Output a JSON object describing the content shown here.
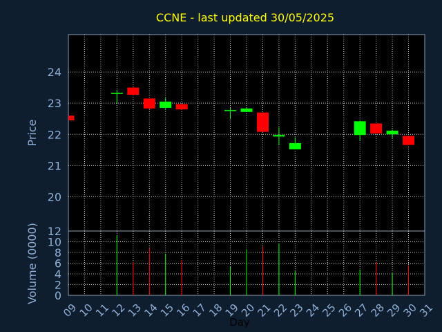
{
  "chart_data": {
    "type": "candlestick",
    "title": "CCNE - last updated 30/05/2025",
    "xlabel": "Day",
    "price_ylabel": "Price",
    "volume_ylabel": "Volume (0000)",
    "x_ticks": [
      "09",
      "10",
      "11",
      "12",
      "13",
      "14",
      "15",
      "16",
      "17",
      "18",
      "19",
      "20",
      "21",
      "22",
      "23",
      "24",
      "25",
      "26",
      "27",
      "28",
      "29",
      "30",
      "31"
    ],
    "price_yticks": [
      "20",
      "21",
      "22",
      "23",
      "24"
    ],
    "volume_yticks": [
      "0",
      "2",
      "4",
      "6",
      "8",
      "10",
      "12"
    ],
    "price_ylim": [
      18.9,
      25.2
    ],
    "volume_ylim": [
      0,
      12
    ],
    "grid": true,
    "colors": {
      "up": "#00ff00",
      "down": "#ff0000",
      "background": "#0f1e2e",
      "plot": "#000000",
      "title": "#ffff00",
      "text": "#8fb0d6"
    },
    "candles": [
      {
        "day": "09",
        "open": 22.6,
        "high": 22.6,
        "low": 22.45,
        "close": 22.45,
        "volume": 0
      },
      {
        "day": "12",
        "open": 23.33,
        "high": 23.42,
        "low": 23.0,
        "close": 23.33,
        "volume": 11.2
      },
      {
        "day": "13",
        "open": 23.5,
        "high": 23.52,
        "low": 23.25,
        "close": 23.27,
        "volume": 6.2
      },
      {
        "day": "14",
        "open": 23.15,
        "high": 23.15,
        "low": 22.8,
        "close": 22.83,
        "volume": 8.8
      },
      {
        "day": "15",
        "open": 22.85,
        "high": 23.17,
        "low": 22.82,
        "close": 23.05,
        "volume": 7.8
      },
      {
        "day": "16",
        "open": 22.97,
        "high": 22.97,
        "low": 22.78,
        "close": 22.8,
        "volume": 6.6
      },
      {
        "day": "19",
        "open": 22.75,
        "high": 22.85,
        "low": 22.5,
        "close": 22.78,
        "volume": 5.3
      },
      {
        "day": "20",
        "open": 22.72,
        "high": 22.85,
        "low": 22.72,
        "close": 22.83,
        "volume": 8.6
      },
      {
        "day": "21",
        "open": 22.7,
        "high": 22.7,
        "low": 22.07,
        "close": 22.08,
        "volume": 9.1
      },
      {
        "day": "22",
        "open": 21.93,
        "high": 22.22,
        "low": 21.65,
        "close": 21.98,
        "volume": 9.6
      },
      {
        "day": "23",
        "open": 21.52,
        "high": 21.9,
        "low": 21.52,
        "close": 21.72,
        "volume": 4.5
      },
      {
        "day": "27",
        "open": 21.98,
        "high": 22.43,
        "low": 21.8,
        "close": 22.42,
        "volume": 4.8
      },
      {
        "day": "28",
        "open": 22.35,
        "high": 22.35,
        "low": 22.02,
        "close": 22.03,
        "volume": 6.2
      },
      {
        "day": "29",
        "open": 22.0,
        "high": 22.15,
        "low": 21.88,
        "close": 22.12,
        "volume": 4.2
      },
      {
        "day": "30",
        "open": 21.95,
        "high": 21.95,
        "low": 21.65,
        "close": 21.66,
        "volume": 5.6
      }
    ]
  }
}
